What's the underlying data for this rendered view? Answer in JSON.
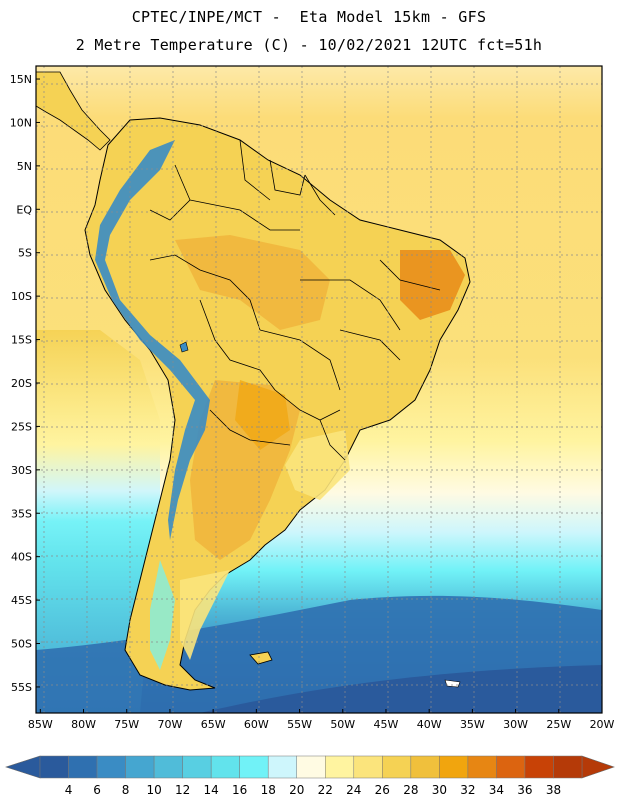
{
  "header": {
    "title_line1": "CPTEC/INPE/MCT -  Eta Model 15km - GFS",
    "title_line2": "2 Metre Temperature (C) - 10/02/2021 12UTC fct=51h"
  },
  "map": {
    "region": "South America",
    "lat_labels": [
      "15N",
      "10N",
      "5N",
      "EQ",
      "5S",
      "10S",
      "15S",
      "20S",
      "25S",
      "30S",
      "35S",
      "40S",
      "45S",
      "50S",
      "55S"
    ],
    "lat_values": [
      15,
      10,
      5,
      0,
      -5,
      -10,
      -15,
      -20,
      -25,
      -30,
      -35,
      -40,
      -45,
      -50,
      -55
    ],
    "lon_labels": [
      "85W",
      "80W",
      "75W",
      "70W",
      "65W",
      "60W",
      "55W",
      "50W",
      "45W",
      "40W",
      "35W",
      "30W",
      "25W",
      "20W"
    ],
    "lon_values": [
      -85,
      -80,
      -75,
      -70,
      -65,
      -60,
      -55,
      -50,
      -45,
      -40,
      -35,
      -30,
      -25,
      -20
    ],
    "lat_range": [
      -58,
      16.5
    ],
    "lon_range": [
      -85.5,
      -20
    ]
  },
  "colorbar": {
    "labels": [
      "4",
      "6",
      "8",
      "10",
      "12",
      "14",
      "16",
      "18",
      "20",
      "22",
      "24",
      "26",
      "28",
      "30",
      "32",
      "34",
      "36",
      "38"
    ],
    "colors": [
      "#2a5a9c",
      "#2f70b0",
      "#3a8cc4",
      "#45a6d0",
      "#50bcd9",
      "#58cfe2",
      "#62e3ec",
      "#71f2f7",
      "#cef6fc",
      "#fffbe3",
      "#fff4a0",
      "#fbe47c",
      "#f5d254",
      "#f0c03c",
      "#f1a50e",
      "#e78613",
      "#dc6410",
      "#c84206",
      "#b53a08"
    ],
    "left_color": "#2a5a9c",
    "right_color": "#b53a08"
  },
  "colors": {
    "ocean_tropical": "#fcdc78",
    "ocean_mid": "#fff4a0",
    "ocean_cool": "#71f2f7",
    "ocean_cold": "#3a8cc4",
    "ocean_deep": "#2a5a9c",
    "land_warm": "#f5d254",
    "land_hot": "#f0b53c",
    "andes_cold": "#45a6d0",
    "grid": "#8a8a8a"
  }
}
